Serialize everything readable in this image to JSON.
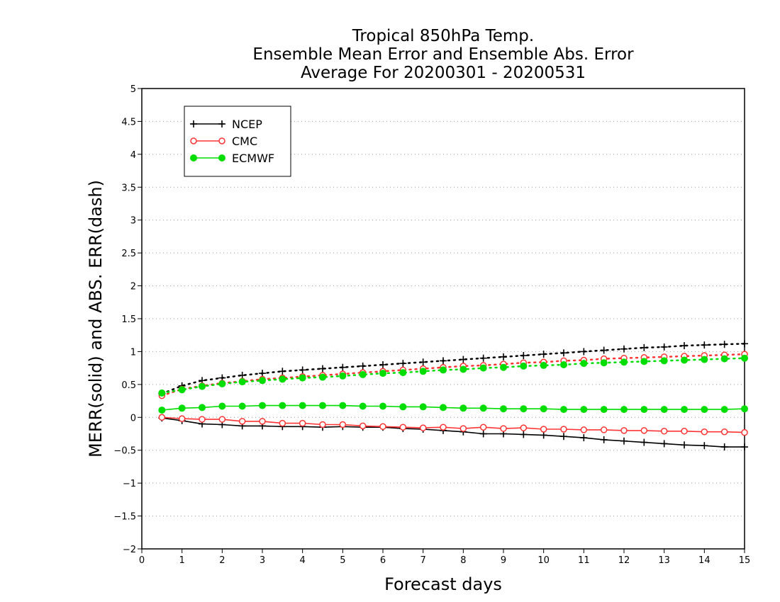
{
  "chart_data": {
    "type": "line",
    "title_lines": [
      "Tropical 850hPa Temp.",
      "Ensemble Mean Error and Ensemble Abs. Error",
      "Average For 20200301 - 20200531"
    ],
    "xlabel": "Forecast days",
    "ylabel": "MERR(solid) and ABS. ERR(dash)",
    "xlim": [
      0,
      15
    ],
    "ylim": [
      -2,
      5
    ],
    "xticks": [
      "0",
      "1",
      "2",
      "3",
      "4",
      "5",
      "6",
      "7",
      "8",
      "9",
      "10",
      "11",
      "12",
      "13",
      "14",
      "15"
    ],
    "yticks": [
      "−2",
      "−1.5",
      "−1",
      "−0.5",
      "0",
      "0.5",
      "1",
      "1.5",
      "2",
      "2.5",
      "3",
      "3.5",
      "4",
      "4.5",
      "5"
    ],
    "grid": "horizontal dotted",
    "legend_position": "top-left",
    "x": [
      0.5,
      1,
      1.5,
      2,
      2.5,
      3,
      3.5,
      4,
      4.5,
      5,
      5.5,
      6,
      6.5,
      7,
      7.5,
      8,
      8.5,
      9,
      9.5,
      10,
      10.5,
      11,
      11.5,
      12,
      12.5,
      13,
      13.5,
      14,
      14.5,
      15
    ],
    "series": [
      {
        "name": "NCEP",
        "color": "#000000",
        "marker": "plus",
        "merr": [
          -0.01,
          -0.05,
          -0.1,
          -0.11,
          -0.13,
          -0.13,
          -0.14,
          -0.14,
          -0.15,
          -0.14,
          -0.15,
          -0.15,
          -0.17,
          -0.18,
          -0.2,
          -0.22,
          -0.25,
          -0.25,
          -0.26,
          -0.27,
          -0.29,
          -0.31,
          -0.34,
          -0.36,
          -0.38,
          -0.4,
          -0.42,
          -0.43,
          -0.45,
          -0.45
        ],
        "abs_err": [
          0.36,
          0.48,
          0.56,
          0.6,
          0.64,
          0.67,
          0.7,
          0.72,
          0.74,
          0.76,
          0.78,
          0.8,
          0.82,
          0.84,
          0.86,
          0.88,
          0.9,
          0.92,
          0.94,
          0.96,
          0.98,
          1.0,
          1.02,
          1.04,
          1.06,
          1.07,
          1.09,
          1.1,
          1.11,
          1.12
        ]
      },
      {
        "name": "CMC",
        "color": "#ff3333",
        "marker": "open-circle",
        "merr": [
          0.0,
          -0.02,
          -0.03,
          -0.03,
          -0.06,
          -0.06,
          -0.09,
          -0.09,
          -0.11,
          -0.11,
          -0.13,
          -0.14,
          -0.15,
          -0.16,
          -0.15,
          -0.17,
          -0.15,
          -0.17,
          -0.16,
          -0.18,
          -0.18,
          -0.19,
          -0.19,
          -0.2,
          -0.2,
          -0.21,
          -0.21,
          -0.22,
          -0.22,
          -0.23
        ],
        "abs_err": [
          0.33,
          0.43,
          0.48,
          0.52,
          0.55,
          0.58,
          0.6,
          0.62,
          0.64,
          0.66,
          0.68,
          0.7,
          0.72,
          0.74,
          0.76,
          0.78,
          0.79,
          0.81,
          0.83,
          0.84,
          0.86,
          0.87,
          0.89,
          0.9,
          0.91,
          0.92,
          0.93,
          0.94,
          0.95,
          0.96
        ]
      },
      {
        "name": "ECMWF",
        "color": "#00dd00",
        "marker": "filled-circle",
        "merr": [
          0.11,
          0.14,
          0.15,
          0.17,
          0.17,
          0.18,
          0.18,
          0.18,
          0.18,
          0.18,
          0.17,
          0.17,
          0.16,
          0.16,
          0.15,
          0.14,
          0.14,
          0.13,
          0.13,
          0.13,
          0.12,
          0.12,
          0.12,
          0.12,
          0.12,
          0.12,
          0.12,
          0.12,
          0.12,
          0.13
        ],
        "abs_err": [
          0.37,
          0.42,
          0.47,
          0.51,
          0.54,
          0.56,
          0.58,
          0.6,
          0.61,
          0.63,
          0.65,
          0.67,
          0.68,
          0.7,
          0.72,
          0.73,
          0.75,
          0.76,
          0.78,
          0.79,
          0.8,
          0.82,
          0.83,
          0.84,
          0.85,
          0.86,
          0.87,
          0.88,
          0.89,
          0.9
        ]
      }
    ]
  }
}
